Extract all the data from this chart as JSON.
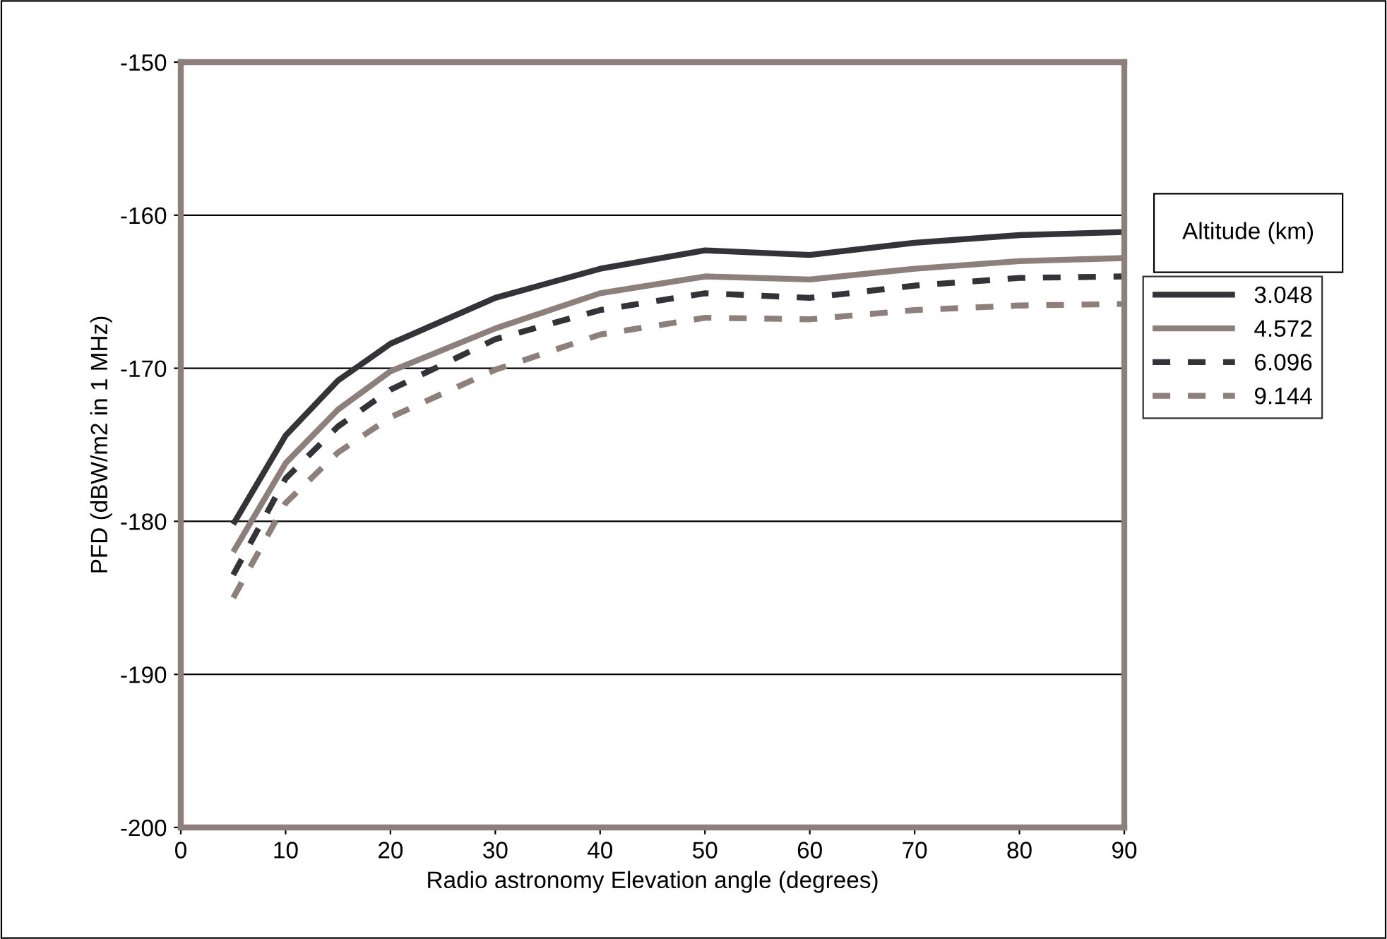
{
  "chart_data": {
    "type": "line",
    "xlabel": "Radio astronomy Elevation angle (degrees)",
    "ylabel": "PFD (dBW/m2 in 1 MHz)",
    "legend_title": "Altitude (km)",
    "x": [
      5,
      10,
      15,
      20,
      30,
      40,
      50,
      60,
      70,
      80,
      90
    ],
    "series": [
      {
        "name": "3.048",
        "color": "#333338",
        "line_style": "solid",
        "values": [
          -180.2,
          -174.4,
          -170.8,
          -168.4,
          -165.4,
          -163.5,
          -162.3,
          -162.6,
          -161.8,
          -161.3,
          -161.1
        ]
      },
      {
        "name": "4.572",
        "color": "#8c7f7c",
        "line_style": "solid",
        "values": [
          -182.0,
          -176.2,
          -172.7,
          -170.2,
          -167.4,
          -165.1,
          -164.0,
          -164.2,
          -163.5,
          -163.0,
          -162.8
        ]
      },
      {
        "name": "6.096",
        "color": "#333338",
        "line_style": "dashed",
        "values": [
          -183.5,
          -177.2,
          -173.8,
          -171.4,
          -168.1,
          -166.2,
          -165.1,
          -165.4,
          -164.6,
          -164.1,
          -164.0
        ]
      },
      {
        "name": "9.144",
        "color": "#8c7f7c",
        "line_style": "dashed",
        "values": [
          -185.0,
          -178.8,
          -175.5,
          -173.2,
          -170.1,
          -167.8,
          -166.7,
          -166.8,
          -166.2,
          -165.9,
          -165.8
        ]
      }
    ],
    "xlim": [
      0,
      90
    ],
    "xticks": [
      0,
      10,
      20,
      30,
      40,
      50,
      60,
      70,
      80,
      90
    ],
    "ylim": [
      -200,
      -150
    ],
    "yticks": [
      -200,
      -190,
      -180,
      -170,
      -160,
      -150
    ],
    "grid": "y",
    "legend": "right",
    "marker": "none"
  }
}
